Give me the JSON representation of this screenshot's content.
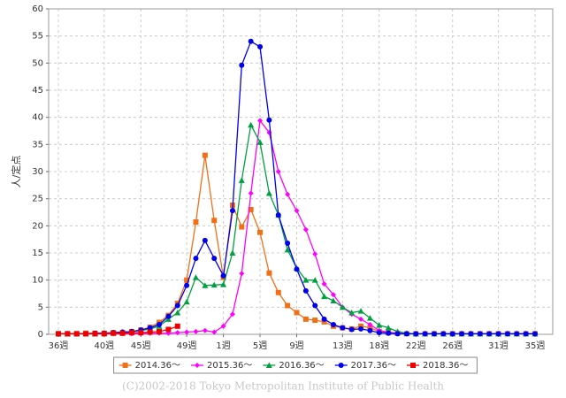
{
  "chart_data": {
    "type": "line",
    "y_label": "人/定点",
    "source": "(C)2002-2018 Tokyo Metropolitan Institute of Public Health",
    "categories": [
      "36週",
      null,
      null,
      null,
      null,
      "40週",
      null,
      null,
      null,
      "45週",
      null,
      null,
      null,
      null,
      "49週",
      null,
      null,
      null,
      "1週",
      null,
      null,
      null,
      "5週",
      null,
      null,
      null,
      "9週",
      null,
      null,
      null,
      null,
      "13週",
      null,
      null,
      null,
      "18週",
      null,
      null,
      null,
      "22週",
      null,
      null,
      null,
      "26週",
      null,
      null,
      null,
      null,
      "31週",
      null,
      null,
      null,
      "35週"
    ],
    "ylim": [
      0,
      60
    ],
    "yticks": [
      0,
      5,
      10,
      15,
      20,
      25,
      30,
      35,
      40,
      45,
      50,
      55,
      60
    ],
    "grid": true,
    "legend": "bottom",
    "series": [
      {
        "name": "2014.36～",
        "color": "#f07018",
        "marker": "square",
        "values": [
          0.1,
          0.1,
          0.1,
          0.2,
          0.2,
          0.2,
          0.3,
          0.3,
          0.5,
          0.8,
          1.3,
          2.2,
          3.5,
          5.7,
          10,
          20.7,
          33,
          21,
          10.5,
          23.8,
          19.8,
          23,
          18.8,
          11.3,
          7.7,
          5.3,
          4,
          2.8,
          2.6,
          2.3,
          1.5,
          1.2,
          1,
          1.5,
          1.2,
          0.5,
          0.3,
          0.2,
          0.1,
          0.1,
          0.1,
          0.1,
          0.1,
          0.1,
          0.1,
          0.1,
          0.1,
          0.1,
          0.1,
          0.1,
          0.1,
          0.1,
          0.1
        ]
      },
      {
        "name": "2015.36～",
        "color": "#ff00ff",
        "marker": "diamond",
        "values": [
          0.1,
          0.1,
          0.1,
          0.1,
          0.1,
          0.1,
          0.1,
          0.1,
          0.1,
          0.1,
          0.2,
          0.2,
          0.2,
          0.3,
          0.4,
          0.5,
          0.7,
          0.4,
          1.5,
          3.7,
          11.2,
          26,
          39.4,
          37.2,
          30,
          25.8,
          22.8,
          19.3,
          14.8,
          9.3,
          7.3,
          5,
          3.7,
          2.8,
          1.8,
          0.7,
          0.4,
          0.2,
          0.1,
          0.1,
          0.1,
          0.1,
          0.1,
          0.1,
          0.1,
          0.1,
          0.1,
          0.1,
          0.1,
          0.1,
          0.1,
          0.1,
          0.1
        ]
      },
      {
        "name": "2016.36～",
        "color": "#00a040",
        "marker": "triangle",
        "values": [
          0.1,
          0.1,
          0.1,
          0.1,
          0.1,
          0.2,
          0.3,
          0.4,
          0.5,
          0.7,
          1,
          1.5,
          2.8,
          4,
          6,
          10.5,
          9,
          9.1,
          9.2,
          15,
          28.4,
          38.6,
          35.4,
          26,
          22,
          15.6,
          12.2,
          10,
          10,
          7,
          6.2,
          5,
          4,
          4.3,
          3,
          1.7,
          1.2,
          0.5,
          0.2,
          0.1,
          0.1,
          0.1,
          0.1,
          0.1,
          0.1,
          0.1,
          0.1,
          0.1,
          0.1,
          0.1,
          0.1,
          0.1,
          0.1
        ]
      },
      {
        "name": "2017.36～",
        "color": "#0000ee",
        "marker": "circle",
        "values": [
          0.1,
          0.1,
          0.1,
          0.1,
          0.2,
          0.2,
          0.3,
          0.4,
          0.5,
          0.8,
          1.2,
          1.8,
          3.3,
          5.3,
          9,
          14,
          17.3,
          14,
          10.8,
          22.8,
          49.6,
          54,
          53,
          39.5,
          22,
          16.8,
          12,
          8,
          5.3,
          2.8,
          1.8,
          1.2,
          0.9,
          1,
          0.7,
          0.3,
          0.2,
          0.1,
          0.1,
          0.1,
          0.1,
          0.1,
          0.1,
          0.1,
          0.1,
          0.1,
          0.1,
          0.1,
          0.1,
          0.1,
          0.1,
          0.1,
          0.1
        ]
      },
      {
        "name": "2018.36～",
        "color": "#ee0000",
        "marker": "square",
        "values": [
          0.1,
          0.1,
          0.1,
          0.1,
          0.1,
          0.1,
          0.2,
          0.2,
          0.3,
          0.3,
          0.4,
          0.5,
          0.9,
          1.5,
          null,
          null,
          null,
          null,
          null,
          null,
          null,
          null,
          null,
          null,
          null,
          null,
          null,
          null,
          null,
          null,
          null,
          null,
          null,
          null,
          null,
          null,
          null,
          null,
          null,
          null,
          null,
          null,
          null,
          null,
          null,
          null,
          null,
          null,
          null,
          null,
          null,
          null,
          null
        ]
      }
    ]
  }
}
